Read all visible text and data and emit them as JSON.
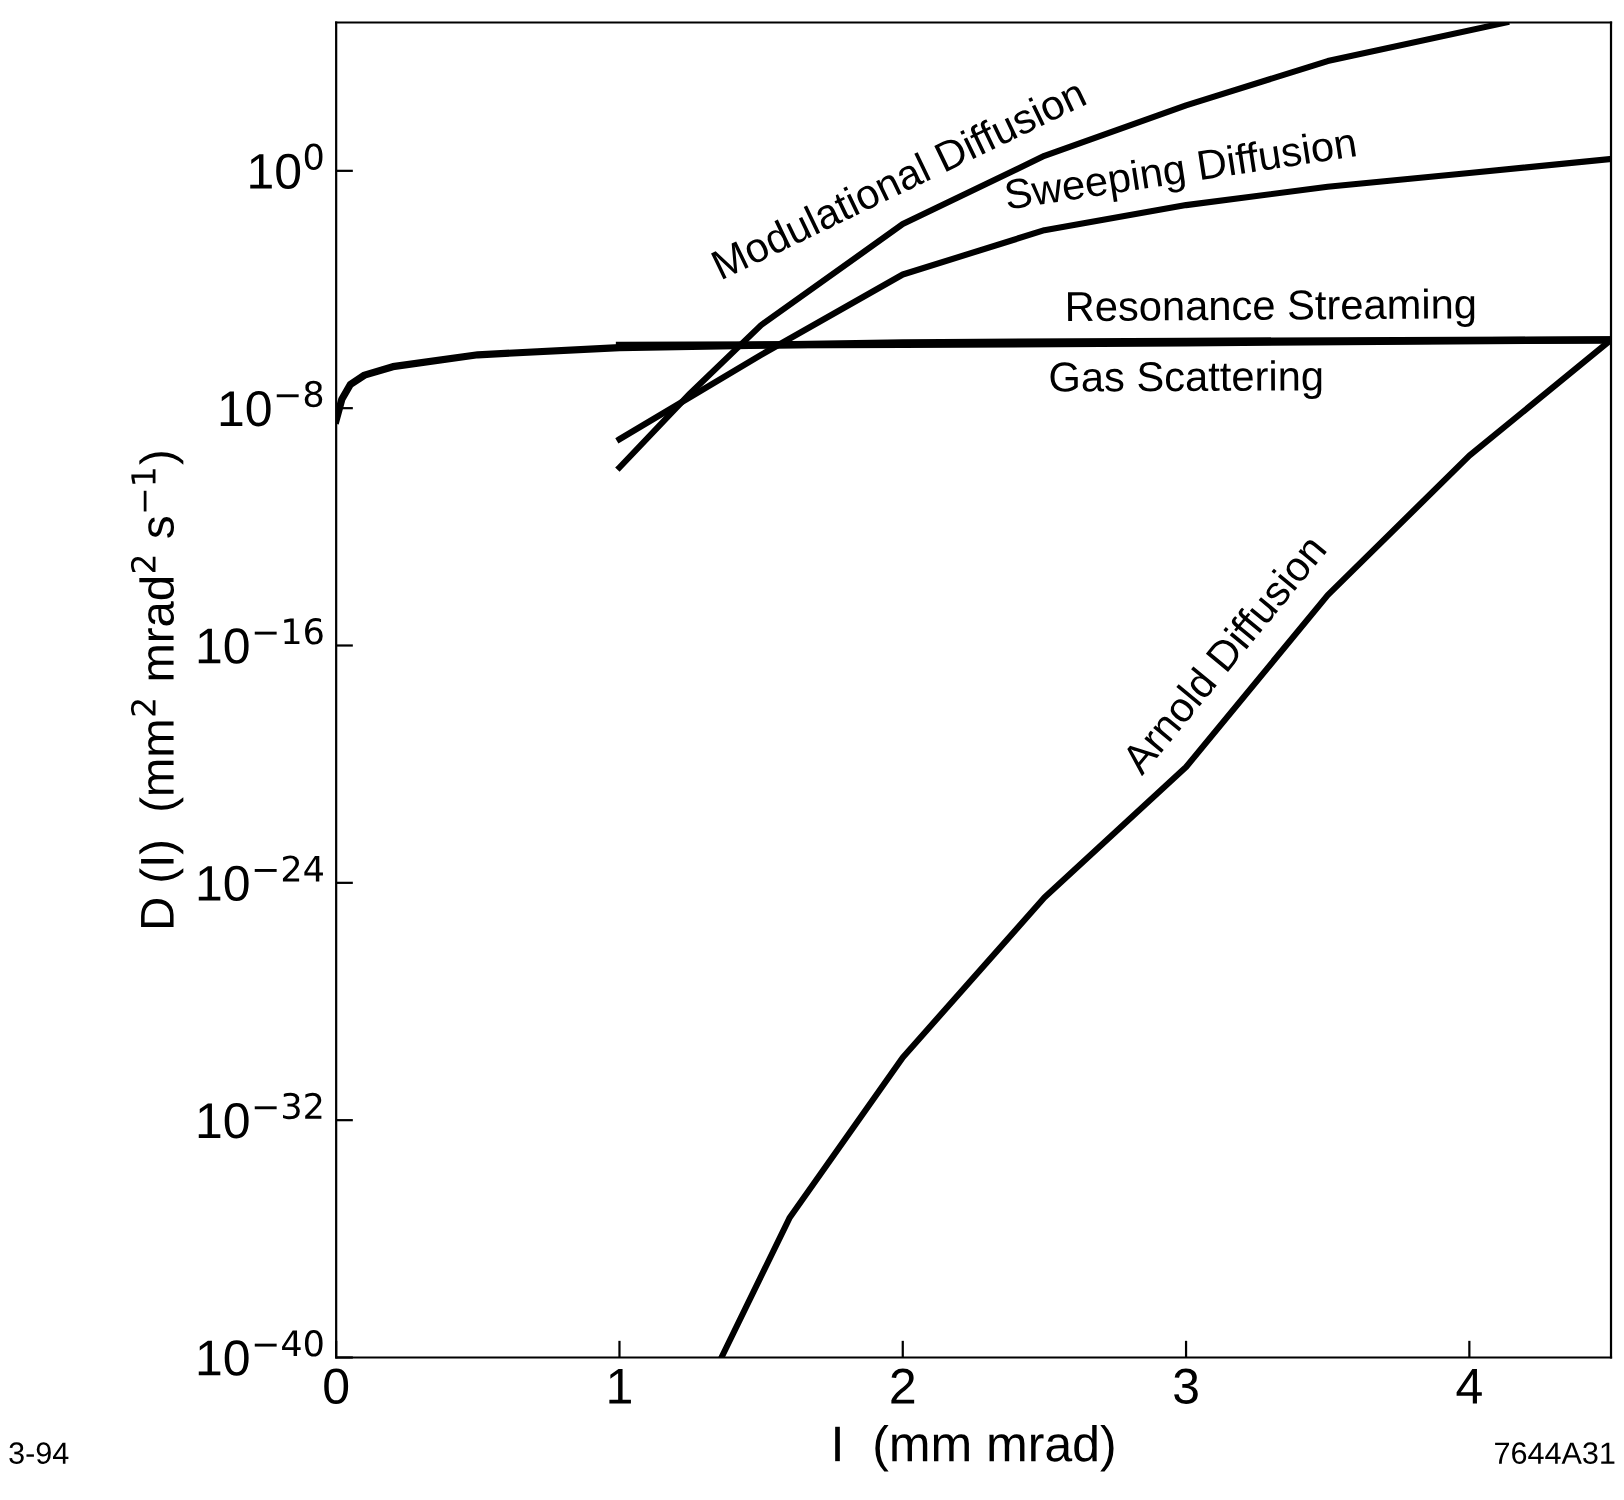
{
  "chart_data": {
    "type": "line",
    "xlabel": "I  (mm mrad)",
    "ylabel": "D (I)  (mm$^{2}$ mrad$^{2}$ s$^{−1}$)",
    "log": "y",
    "xlim": [
      0,
      4.5
    ],
    "ylim": [
      1e-40,
      100000.0
    ],
    "xticks": [
      0,
      1,
      2,
      3,
      4
    ],
    "yticks": [
      {
        "value": 1e-40,
        "label": "10$^{−40}$"
      },
      {
        "value": 1e-32,
        "label": "10$^{−32}$"
      },
      {
        "value": 1e-24,
        "label": "10$^{−24}$"
      },
      {
        "value": 1e-16,
        "label": "10$^{−16}$"
      },
      {
        "value": 1e-08,
        "label": "10$^{−8}$"
      },
      {
        "value": 1,
        "label": "10$^{0}$"
      }
    ],
    "grid": false,
    "line_style": "solid",
    "marker": "none",
    "series": [
      {
        "name": "Modulational Diffusion",
        "color": "#000000",
        "x": [
          1,
          1.25,
          1.5,
          2,
          2.5,
          3,
          3.5,
          4.13
        ],
        "values": [
          1e-10,
          3.2e-08,
          6.3e-06,
          0.016,
          3.2,
          160,
          5000,
          100000.0
        ]
      },
      {
        "name": "Sweeping Diffusion",
        "color": "#000000",
        "x": [
          1,
          1.5,
          2,
          2.5,
          3,
          3.5,
          4,
          4.5
        ],
        "values": [
          9e-10,
          6.3e-07,
          0.00032,
          0.01,
          0.07,
          0.29,
          0.85,
          2.5
        ]
      },
      {
        "name": "Resonance Streaming",
        "color": "#000000",
        "x": [
          1,
          2,
          3,
          4.5
        ],
        "values": [
          1.3e-06,
          1.4e-06,
          1.6e-06,
          2e-06
        ]
      },
      {
        "name": "Gas Scattering",
        "color": "#000000",
        "x": [
          0,
          0.02,
          0.05,
          0.1,
          0.2,
          0.5,
          1,
          2,
          3,
          4.5
        ],
        "values": [
          4e-09,
          2e-08,
          6.3e-08,
          1.3e-07,
          2.5e-07,
          6.3e-07,
          1.1e-06,
          1.6e-06,
          1.8e-06,
          2e-06
        ]
      },
      {
        "name": "Arnold Diffusion",
        "color": "#000000",
        "x": [
          1.36,
          1.6,
          2,
          2.5,
          3,
          3.5,
          4,
          4.5
        ],
        "values": [
          1e-40,
          5e-36,
          1.3e-30,
          3.2e-25,
          8e-21,
          5e-15,
          2.5e-10,
          2e-06
        ]
      }
    ],
    "annotations": [
      "3-94",
      "7644A31"
    ]
  }
}
